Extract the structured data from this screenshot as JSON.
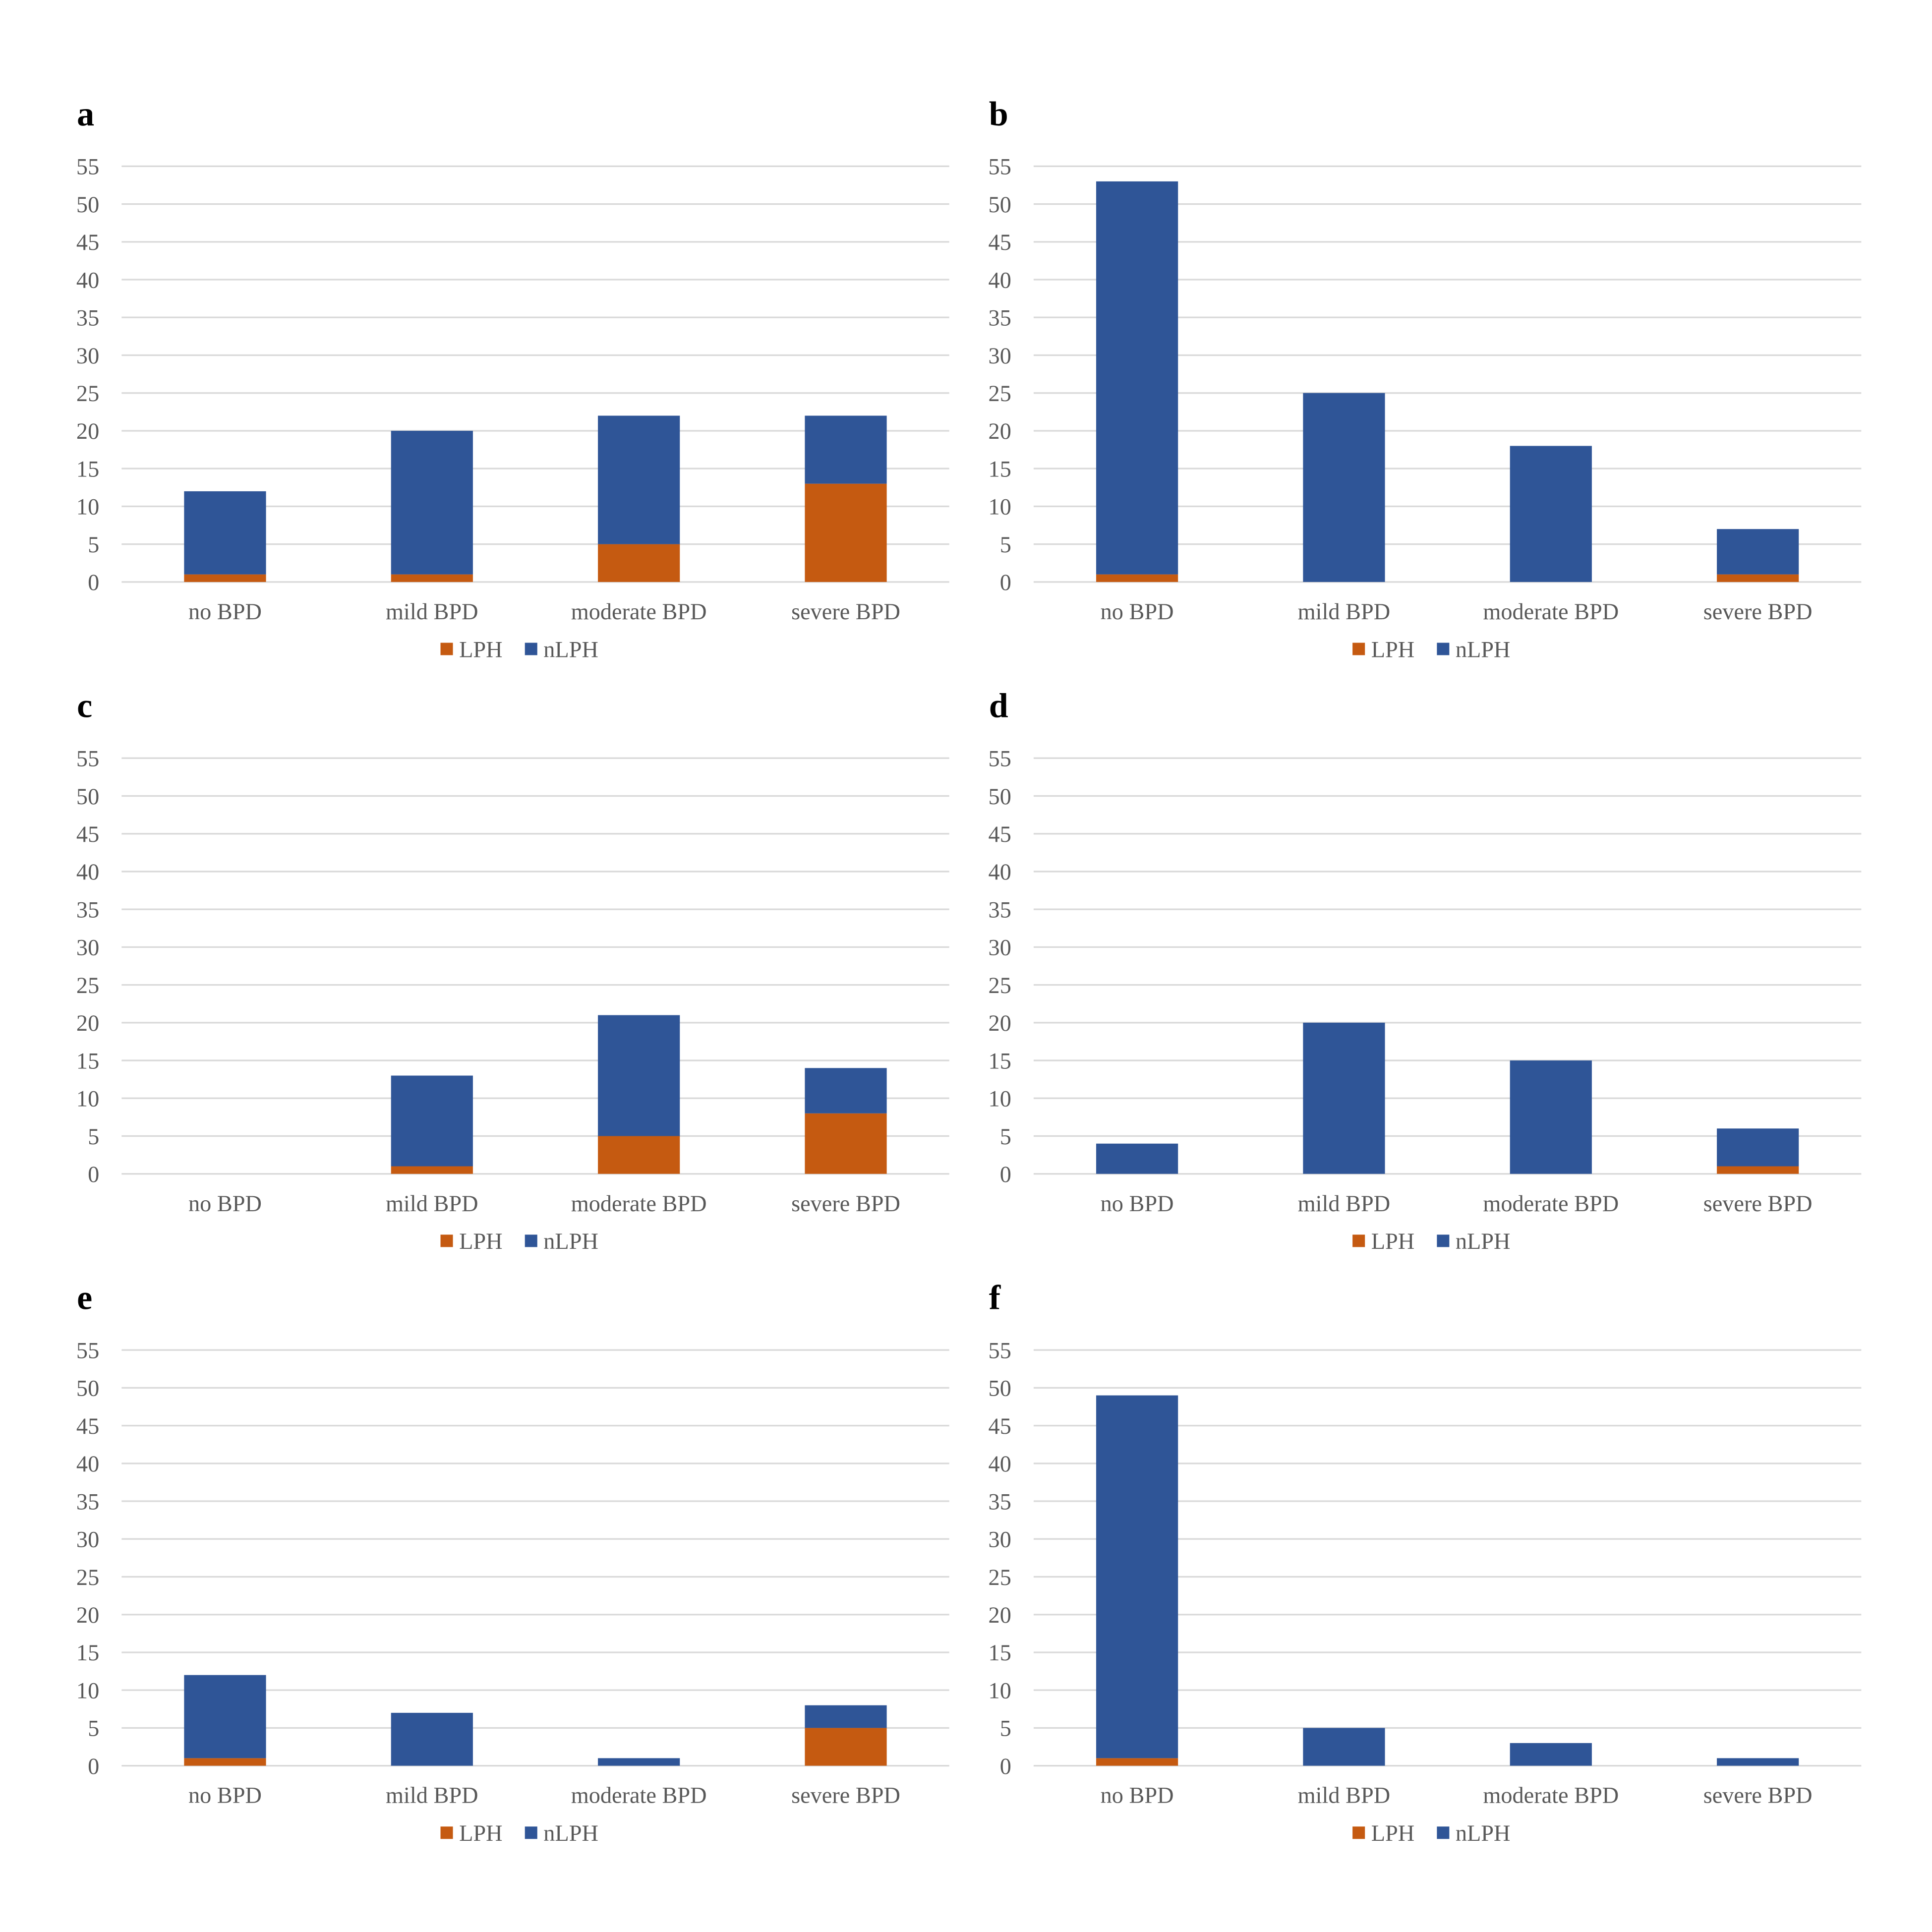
{
  "figure": {
    "colors": {
      "LPH": "#C55A11",
      "nLPH": "#2F5597",
      "gridline": "#D9D9D9",
      "axis_text": "#595959",
      "panel_label": "#000000"
    }
  },
  "chart_data": [
    {
      "panel": "a",
      "type": "bar",
      "stacked": true,
      "categories": [
        "no BPD",
        "mild BPD",
        "moderate BPD",
        "severe BPD"
      ],
      "series": [
        {
          "name": "LPH",
          "values": [
            1,
            1,
            5,
            13
          ]
        },
        {
          "name": "nLPH",
          "values": [
            11,
            19,
            17,
            9
          ]
        }
      ],
      "ylim": [
        0,
        55
      ],
      "yticks": [
        0,
        5,
        10,
        15,
        20,
        25,
        30,
        35,
        40,
        45,
        50,
        55
      ],
      "grid": true,
      "legend": "bottom"
    },
    {
      "panel": "b",
      "type": "bar",
      "stacked": true,
      "categories": [
        "no BPD",
        "mild BPD",
        "moderate BPD",
        "severe BPD"
      ],
      "series": [
        {
          "name": "LPH",
          "values": [
            1,
            0,
            0,
            1
          ]
        },
        {
          "name": "nLPH",
          "values": [
            52,
            25,
            18,
            6
          ]
        }
      ],
      "ylim": [
        0,
        55
      ],
      "yticks": [
        0,
        5,
        10,
        15,
        20,
        25,
        30,
        35,
        40,
        45,
        50,
        55
      ],
      "grid": true,
      "legend": "bottom"
    },
    {
      "panel": "c",
      "type": "bar",
      "stacked": true,
      "categories": [
        "no BPD",
        "mild BPD",
        "moderate BPD",
        "severe BPD"
      ],
      "series": [
        {
          "name": "LPH",
          "values": [
            0,
            1,
            5,
            8
          ]
        },
        {
          "name": "nLPH",
          "values": [
            0,
            12,
            16,
            6
          ]
        }
      ],
      "ylim": [
        0,
        55
      ],
      "yticks": [
        0,
        5,
        10,
        15,
        20,
        25,
        30,
        35,
        40,
        45,
        50,
        55
      ],
      "grid": true,
      "legend": "bottom"
    },
    {
      "panel": "d",
      "type": "bar",
      "stacked": true,
      "categories": [
        "no BPD",
        "mild BPD",
        "moderate BPD",
        "severe BPD"
      ],
      "series": [
        {
          "name": "LPH",
          "values": [
            0,
            0,
            0,
            1
          ]
        },
        {
          "name": "nLPH",
          "values": [
            4,
            20,
            15,
            5
          ]
        }
      ],
      "ylim": [
        0,
        55
      ],
      "yticks": [
        0,
        5,
        10,
        15,
        20,
        25,
        30,
        35,
        40,
        45,
        50,
        55
      ],
      "grid": true,
      "legend": "bottom"
    },
    {
      "panel": "e",
      "type": "bar",
      "stacked": true,
      "categories": [
        "no BPD",
        "mild BPD",
        "moderate BPD",
        "severe BPD"
      ],
      "series": [
        {
          "name": "LPH",
          "values": [
            1,
            0,
            0,
            5
          ]
        },
        {
          "name": "nLPH",
          "values": [
            11,
            7,
            1,
            3
          ]
        }
      ],
      "ylim": [
        0,
        55
      ],
      "yticks": [
        0,
        5,
        10,
        15,
        20,
        25,
        30,
        35,
        40,
        45,
        50,
        55
      ],
      "grid": true,
      "legend": "bottom"
    },
    {
      "panel": "f",
      "type": "bar",
      "stacked": true,
      "categories": [
        "no BPD",
        "mild BPD",
        "moderate BPD",
        "severe BPD"
      ],
      "series": [
        {
          "name": "LPH",
          "values": [
            1,
            0,
            0,
            0
          ]
        },
        {
          "name": "nLPH",
          "values": [
            48,
            5,
            3,
            1
          ]
        }
      ],
      "ylim": [
        0,
        55
      ],
      "yticks": [
        0,
        5,
        10,
        15,
        20,
        25,
        30,
        35,
        40,
        45,
        50,
        55
      ],
      "grid": true,
      "legend": "bottom"
    }
  ]
}
